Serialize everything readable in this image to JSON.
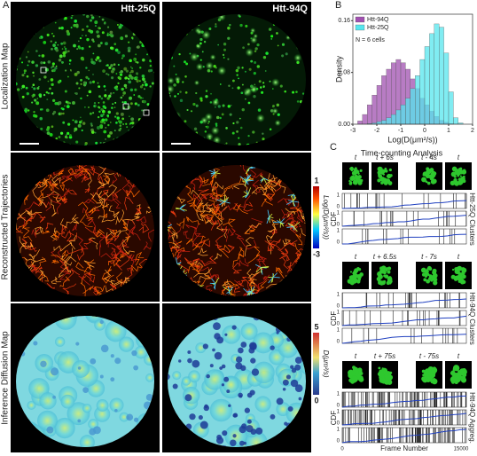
{
  "panel_a": {
    "label": "A",
    "columns": [
      "Htt-25Q",
      "Htt-94Q"
    ],
    "rows": [
      "Localization Map",
      "Reconstructed Trajectories",
      "Inference Diffusion Map"
    ],
    "colorbars": [
      {
        "label": "Log(D(μm²/s))",
        "ticks": [
          1,
          -3
        ]
      },
      {
        "label": "D(μm²/s)",
        "ticks": [
          5,
          0
        ]
      }
    ]
  },
  "chart_data": {
    "type": "histogram",
    "label": "B",
    "ylabel": "Density",
    "xlabel": "Log(D(μm²/s))",
    "annotation": "N = 6 cells",
    "legend": "upper left",
    "bins": [
      -2.8,
      -2.6,
      -2.4,
      -2.2,
      -2.0,
      -1.8,
      -1.6,
      -1.4,
      -1.2,
      -1.0,
      -0.8,
      -0.6,
      -0.4,
      -0.2,
      0.0,
      0.2,
      0.4,
      0.6,
      0.8,
      1.0,
      1.2,
      1.4,
      1.6
    ],
    "series": [
      {
        "name": "Htt-94Q",
        "color": "#a050b0",
        "values": [
          0.005,
          0.015,
          0.03,
          0.045,
          0.06,
          0.075,
          0.085,
          0.095,
          0.1,
          0.095,
          0.085,
          0.07,
          0.055,
          0.04,
          0.03,
          0.02,
          0.012,
          0.006,
          0.003,
          0.001,
          0,
          0
        ]
      },
      {
        "name": "Htt-25Q",
        "color": "#55e6ee",
        "values": [
          0,
          0,
          0.001,
          0.002,
          0.004,
          0.006,
          0.01,
          0.015,
          0.022,
          0.03,
          0.04,
          0.055,
          0.075,
          0.1,
          0.12,
          0.14,
          0.155,
          0.15,
          0.11,
          0.05,
          0.01,
          0.002
        ]
      }
    ],
    "xlim": [
      -3,
      2
    ],
    "xticks": [
      -3,
      -2,
      -1,
      0,
      1,
      2
    ],
    "ylim": [
      0,
      0.17
    ],
    "yticks": [
      {
        "value": 0,
        "label": "0.00"
      },
      0.08,
      0.16
    ]
  },
  "panel_c": {
    "label": "C",
    "title": "Time-counting Analysis",
    "ylabel": "CDF",
    "yticks": [
      1,
      0
    ],
    "xticks": [
      0,
      15000
    ],
    "xlabel": "Frame Number",
    "groups": [
      {
        "name": "Htt-25Q Clusters",
        "frames": [
          "t",
          "t + 6s",
          "t - 4s",
          "t"
        ]
      },
      {
        "name": "Htt-94Q Clusters",
        "frames": [
          "t",
          "t + 6.5s",
          "t - 7s",
          "t"
        ]
      },
      {
        "name": "Htt-94Q Aggreg.",
        "frames": [
          "t",
          "t + 75s",
          "t - 75s",
          "t"
        ]
      }
    ]
  }
}
